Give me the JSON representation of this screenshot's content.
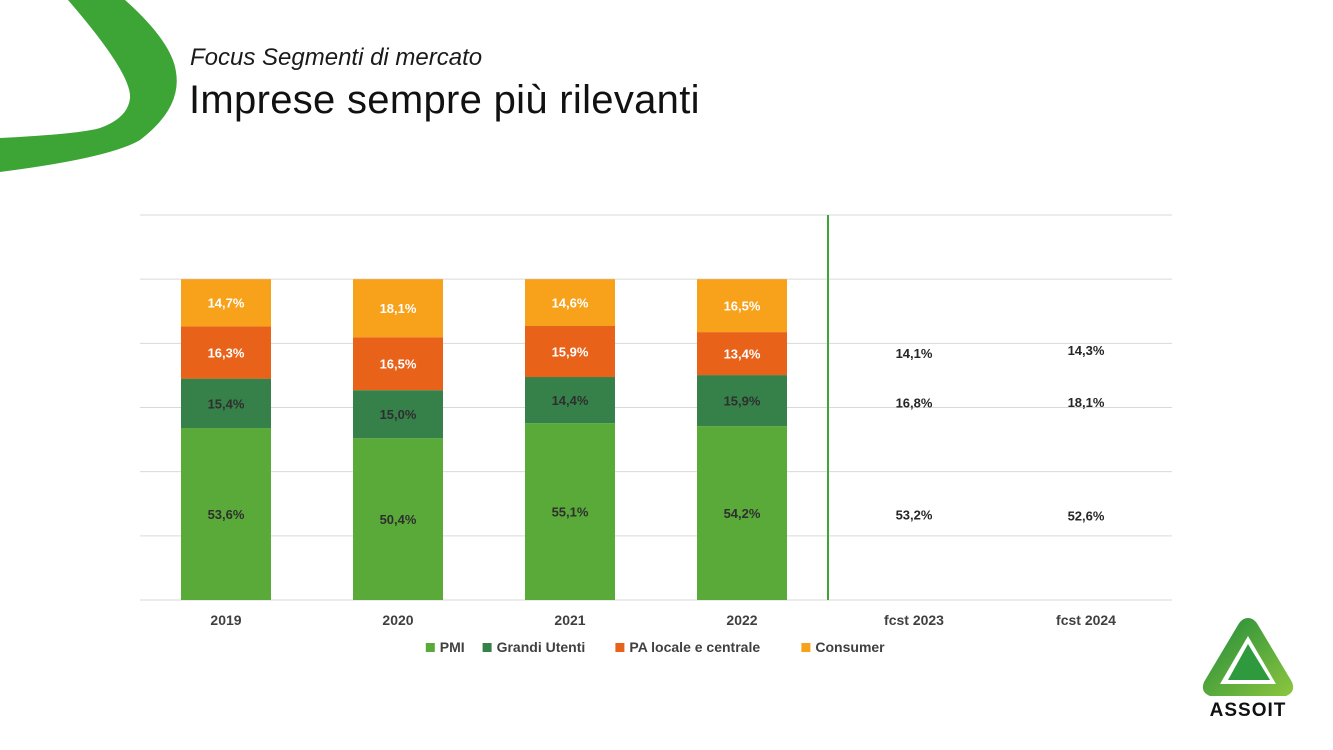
{
  "header": {
    "subtitle": "Focus Segmenti di mercato",
    "title": "Imprese sempre più rilevanti"
  },
  "colors": {
    "accent_green": "#3da535",
    "pmi": "#5aaa3a",
    "grandi_utenti": "#36804a",
    "pa": "#e8621a",
    "consumer": "#f8a11b",
    "divider": "#3da535"
  },
  "chart_data": {
    "type": "bar",
    "stacked": true,
    "categories": [
      "2019",
      "2020",
      "2021",
      "2022",
      "fcst 2023",
      "fcst 2024"
    ],
    "series": [
      {
        "name": "PMI",
        "values": [
          53.6,
          50.4,
          55.1,
          54.2,
          53.2,
          52.6
        ],
        "labels": [
          "53,6%",
          "50,4%",
          "55,1%",
          "54,2%",
          "53,2%",
          "52,6%"
        ],
        "color": "#5aaa3a"
      },
      {
        "name": "Grandi Utenti",
        "values": [
          15.4,
          15.0,
          14.4,
          15.9,
          16.8,
          18.1
        ],
        "labels": [
          "15,4%",
          "15,0%",
          "14,4%",
          "15,9%",
          "16,8%",
          "18,1%"
        ],
        "color": "#36804a"
      },
      {
        "name": "PA locale e centrale",
        "values": [
          16.3,
          16.5,
          15.9,
          13.4,
          14.1,
          14.3
        ],
        "labels": [
          "16,3%",
          "16,5%",
          "15,9%",
          "13,4%",
          "14,1%",
          "14,3%"
        ],
        "color": "#e8621a"
      },
      {
        "name": "Consumer",
        "values": [
          14.7,
          18.1,
          14.6,
          16.5,
          null,
          null
        ],
        "labels": [
          "14,7%",
          "18,1%",
          "14,6%",
          "16,5%",
          "",
          ""
        ],
        "color": "#f8a11b"
      }
    ],
    "forecast_categories": [
      "fcst 2023",
      "fcst 2024"
    ],
    "ylim": [
      0,
      120
    ],
    "grid": true,
    "legend_position": "bottom"
  },
  "logo": {
    "text": "ASSOIT"
  }
}
